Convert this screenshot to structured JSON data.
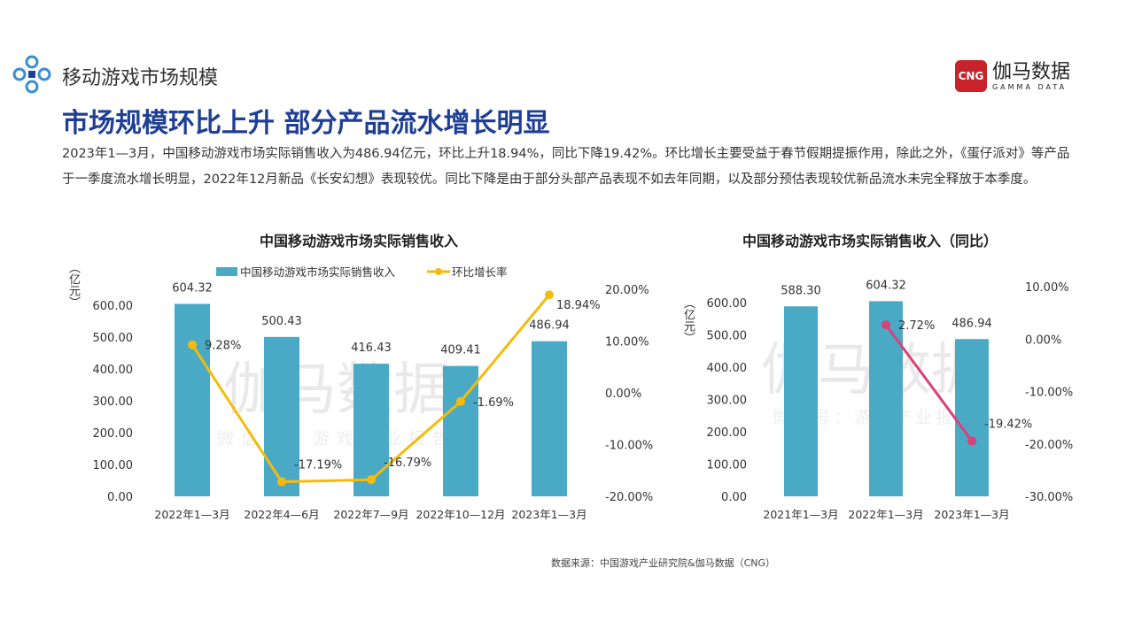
{
  "header": {
    "section": "移动游戏市场规模",
    "title": "市场规模环比上升 部分产品流水增长明显",
    "paragraph": "2023年1—3月，中国移动游戏市场实际销售收入为486.94亿元，环比上升18.94%，同比下降19.42%。环比增长主要受益于春节假期提振作用，除此之外，《蛋仔派对》等产品于一季度流水增长明显，2022年12月新品《长安幻想》表现较优。同比下降是由于部分头部产品表现不如去年同期，以及部分预估表现较优新品流水未完全释放于本季度。"
  },
  "brand": {
    "logo_text": "CNG",
    "name_cn": "伽马数据",
    "name_en": "GAMMA DATA"
  },
  "watermark": {
    "main": "伽马数据",
    "sub": "微信号：游戏产业报告"
  },
  "source": "数据来源：中国游戏产业研究院&伽马数据（CNG）",
  "colors": {
    "bar": "#4aaac5",
    "line_qoq": "#f5bb0c",
    "line_yoy": "#d9417a",
    "title": "#1f3f94"
  },
  "chart_data": [
    {
      "type": "bar+line",
      "title": "中国移动游戏市场实际销售收入",
      "ylabel": "（亿元）",
      "categories": [
        "2022年1—3月",
        "2022年4—6月",
        "2022年7—9月",
        "2022年10—12月",
        "2023年1—3月"
      ],
      "series": [
        {
          "name": "中国移动游戏市场实际销售收入",
          "type": "bar",
          "axis": "left",
          "values": [
            604.32,
            500.43,
            416.43,
            409.41,
            486.94
          ],
          "labels": [
            "604.32",
            "500.43",
            "416.43",
            "409.41",
            "486.94"
          ]
        },
        {
          "name": "环比增长率",
          "type": "line",
          "axis": "right",
          "values": [
            9.28,
            -17.19,
            -16.79,
            -1.69,
            18.94
          ],
          "labels": [
            "9.28%",
            "-17.19%",
            "-16.79%",
            "-1.69%",
            "18.94%"
          ]
        }
      ],
      "ylim": [
        0,
        600
      ],
      "yticks": [
        "0.00",
        "100.00",
        "200.00",
        "300.00",
        "400.00",
        "500.00",
        "600.00"
      ],
      "y2lim": [
        -20,
        20
      ],
      "y2ticks": [
        "-20.00%",
        "-10.00%",
        "0.00%",
        "10.00%",
        "20.00%"
      ],
      "legend": "top",
      "grid": false
    },
    {
      "type": "bar+line",
      "title": "中国移动游戏市场实际销售收入（同比）",
      "ylabel": "（亿元）",
      "categories": [
        "2021年1—3月",
        "2022年1—3月",
        "2023年1—3月"
      ],
      "series": [
        {
          "type": "bar",
          "axis": "left",
          "values": [
            588.3,
            604.32,
            486.94
          ],
          "labels": [
            "588.30",
            "604.32",
            "486.94"
          ]
        },
        {
          "type": "line",
          "axis": "right",
          "values": [
            null,
            2.72,
            -19.42
          ],
          "labels": [
            "",
            "2.72%",
            "-19.42%"
          ]
        }
      ],
      "ylim": [
        0,
        600
      ],
      "yticks": [
        "0.00",
        "100.00",
        "200.00",
        "300.00",
        "400.00",
        "500.00",
        "600.00"
      ],
      "y2lim": [
        -30,
        10
      ],
      "y2ticks": [
        "-30.00%",
        "-20.00%",
        "-10.00%",
        "0.00%",
        "10.00%"
      ],
      "legend": "none",
      "grid": false
    }
  ]
}
